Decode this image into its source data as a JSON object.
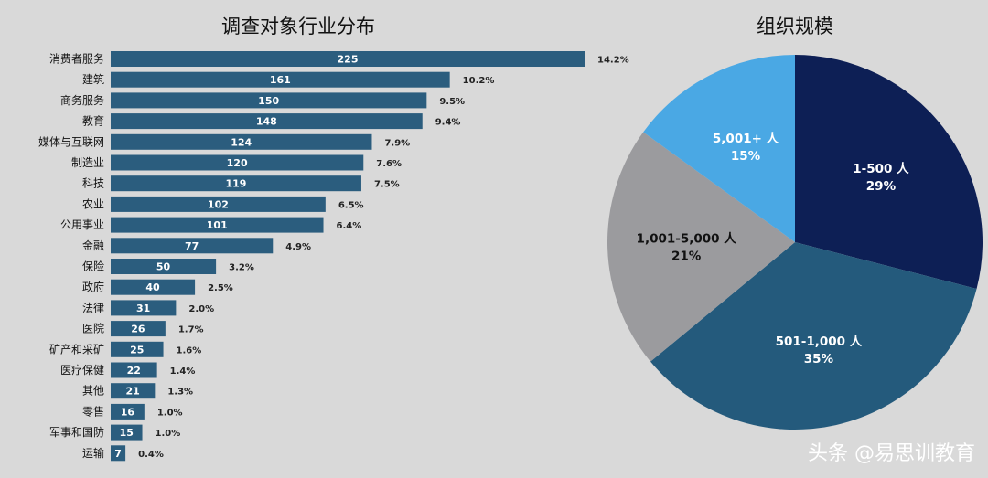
{
  "chart_data": [
    {
      "type": "bar",
      "orientation": "horizontal",
      "title": "调查对象行业分布",
      "categories": [
        "消费者服务",
        "建筑",
        "商务服务",
        "教育",
        "媒体与互联网",
        "制造业",
        "科技",
        "农业",
        "公用事业",
        "金融",
        "保险",
        "政府",
        "法律",
        "医院",
        "矿产和采矿",
        "医疗保健",
        "其他",
        "零售",
        "军事和国防",
        "运输"
      ],
      "values": [
        225,
        161,
        150,
        148,
        124,
        120,
        119,
        102,
        101,
        77,
        50,
        40,
        31,
        26,
        25,
        22,
        21,
        16,
        15,
        7
      ],
      "value_labels": [
        "225",
        "161",
        "150",
        "148",
        "124",
        "120",
        "119",
        "102",
        "101",
        "77",
        "50",
        "40",
        "31",
        "26",
        "25",
        "22",
        "21",
        "16",
        "15",
        "7"
      ],
      "percent_labels": [
        "14.2%",
        "10.2%",
        "9.5%",
        "9.4%",
        "7.9%",
        "7.6%",
        "7.5%",
        "6.5%",
        "6.4%",
        "4.9%",
        "3.2%",
        "2.5%",
        "2.0%",
        "1.7%",
        "1.6%",
        "1.4%",
        "1.3%",
        "1.0%",
        "1.0%",
        "0.4%"
      ],
      "bar_color": "#2b5d7e",
      "grid": false
    },
    {
      "type": "pie",
      "title": "组织规模",
      "slices": [
        {
          "label": "1-500 人",
          "value": 29,
          "value_label": "29%",
          "color": "#0d1f55",
          "text_color": "#ffffff"
        },
        {
          "label": "501-1,000 人",
          "value": 35,
          "value_label": "35%",
          "color": "#245a7c",
          "text_color": "#ffffff"
        },
        {
          "label": "1,001-5,000 人",
          "value": 21,
          "value_label": "21%",
          "color": "#9b9b9e",
          "text_color": "#111111"
        },
        {
          "label": "5,001+ 人",
          "value": 15,
          "value_label": "15%",
          "color": "#4aa8e4",
          "text_color": "#ffffff"
        }
      ]
    }
  ],
  "watermark": "头条 @易思训教育"
}
